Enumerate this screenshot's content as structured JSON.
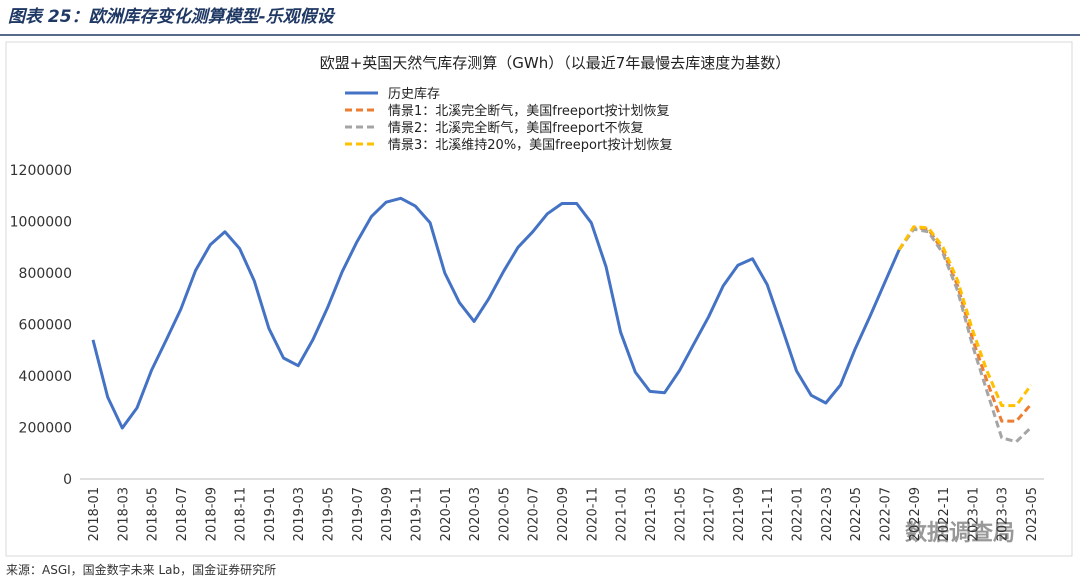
{
  "header": "图表 25：欧洲库存变化测算模型-乐观假设",
  "source": "来源：ASGI，国金数字未来 Lab，国金证券研究所",
  "watermark": "数据调查局",
  "chart_data": {
    "type": "line",
    "title": "欧盟+英国天然气库存测算（GWh）（以最近7年最慢去库速度为基数）",
    "categories": [
      "2018-01",
      null,
      "2018-03",
      null,
      "2018-05",
      null,
      "2018-07",
      null,
      "2018-09",
      null,
      "2018-11",
      null,
      "2019-01",
      null,
      "2019-03",
      null,
      "2019-05",
      null,
      "2019-07",
      null,
      "2019-09",
      null,
      "2019-11",
      null,
      "2020-01",
      null,
      "2020-03",
      null,
      "2020-05",
      null,
      "2020-07",
      null,
      "2020-09",
      null,
      "2020-11",
      null,
      "2021-01",
      null,
      "2021-03",
      null,
      "2021-05",
      null,
      "2021-07",
      null,
      "2021-09",
      null,
      "2021-11",
      null,
      "2022-01",
      null,
      "2022-03",
      null,
      "2022-05",
      null,
      "2022-07",
      null,
      "2022-09",
      null,
      "2022-11",
      null,
      "2023-01",
      null,
      "2023-03",
      null,
      "2023-05"
    ],
    "series": [
      {
        "name": "历史库存",
        "color": "#4472c4",
        "dashed": false,
        "values": [
          540000,
          318000,
          198000,
          276000,
          423000,
          540000,
          660000,
          810000,
          910000,
          960000,
          895000,
          770000,
          585000,
          470000,
          440000,
          540000,
          665000,
          805000,
          920000,
          1020000,
          1075000,
          1090000,
          1060000,
          995000,
          800000,
          685000,
          612000,
          700000,
          805000,
          900000,
          960000,
          1030000,
          1070000,
          1070000,
          995000,
          825000,
          570000,
          415000,
          340000,
          335000,
          420000,
          525000,
          630000,
          750000,
          830000,
          855000,
          755000,
          590000,
          420000,
          325000,
          295000,
          365000,
          505000,
          630000,
          760000,
          890000,
          null,
          null,
          null,
          null,
          null,
          null,
          null,
          null,
          null
        ]
      },
      {
        "name": "情景1：北溪完全断气，美国freeport按计划恢复",
        "color": "#ed7d31",
        "dashed": true,
        "values": [
          null,
          null,
          null,
          null,
          null,
          null,
          null,
          null,
          null,
          null,
          null,
          null,
          null,
          null,
          null,
          null,
          null,
          null,
          null,
          null,
          null,
          null,
          null,
          null,
          null,
          null,
          null,
          null,
          null,
          null,
          null,
          null,
          null,
          null,
          null,
          null,
          null,
          null,
          null,
          null,
          null,
          null,
          null,
          null,
          null,
          null,
          null,
          null,
          null,
          null,
          null,
          null,
          null,
          null,
          null,
          890000,
          975000,
          970000,
          885000,
          750000,
          545000,
          380000,
          225000,
          225000,
          290000
        ]
      },
      {
        "name": "情景2：北溪完全断气，美国freeport不恢复",
        "color": "#a5a5a5",
        "dashed": true,
        "values": [
          null,
          null,
          null,
          null,
          null,
          null,
          null,
          null,
          null,
          null,
          null,
          null,
          null,
          null,
          null,
          null,
          null,
          null,
          null,
          null,
          null,
          null,
          null,
          null,
          null,
          null,
          null,
          null,
          null,
          null,
          null,
          null,
          null,
          null,
          null,
          null,
          null,
          null,
          null,
          null,
          null,
          null,
          null,
          null,
          null,
          null,
          null,
          null,
          null,
          null,
          null,
          null,
          null,
          null,
          null,
          890000,
          970000,
          960000,
          875000,
          730000,
          520000,
          340000,
          160000,
          145000,
          200000
        ]
      },
      {
        "name": "情景3：北溪维持20%，美国freeport按计划恢复",
        "color": "#ffc000",
        "dashed": true,
        "values": [
          null,
          null,
          null,
          null,
          null,
          null,
          null,
          null,
          null,
          null,
          null,
          null,
          null,
          null,
          null,
          null,
          null,
          null,
          null,
          null,
          null,
          null,
          null,
          null,
          null,
          null,
          null,
          null,
          null,
          null,
          null,
          null,
          null,
          null,
          null,
          null,
          null,
          null,
          null,
          null,
          null,
          null,
          null,
          null,
          null,
          null,
          null,
          null,
          null,
          null,
          null,
          null,
          null,
          null,
          null,
          890000,
          980000,
          975000,
          900000,
          770000,
          580000,
          420000,
          285000,
          285000,
          365000
        ]
      }
    ],
    "ylim": [
      0,
      1200000
    ],
    "yticks": [
      0,
      200000,
      400000,
      600000,
      800000,
      1000000,
      1200000
    ],
    "grid": false
  }
}
